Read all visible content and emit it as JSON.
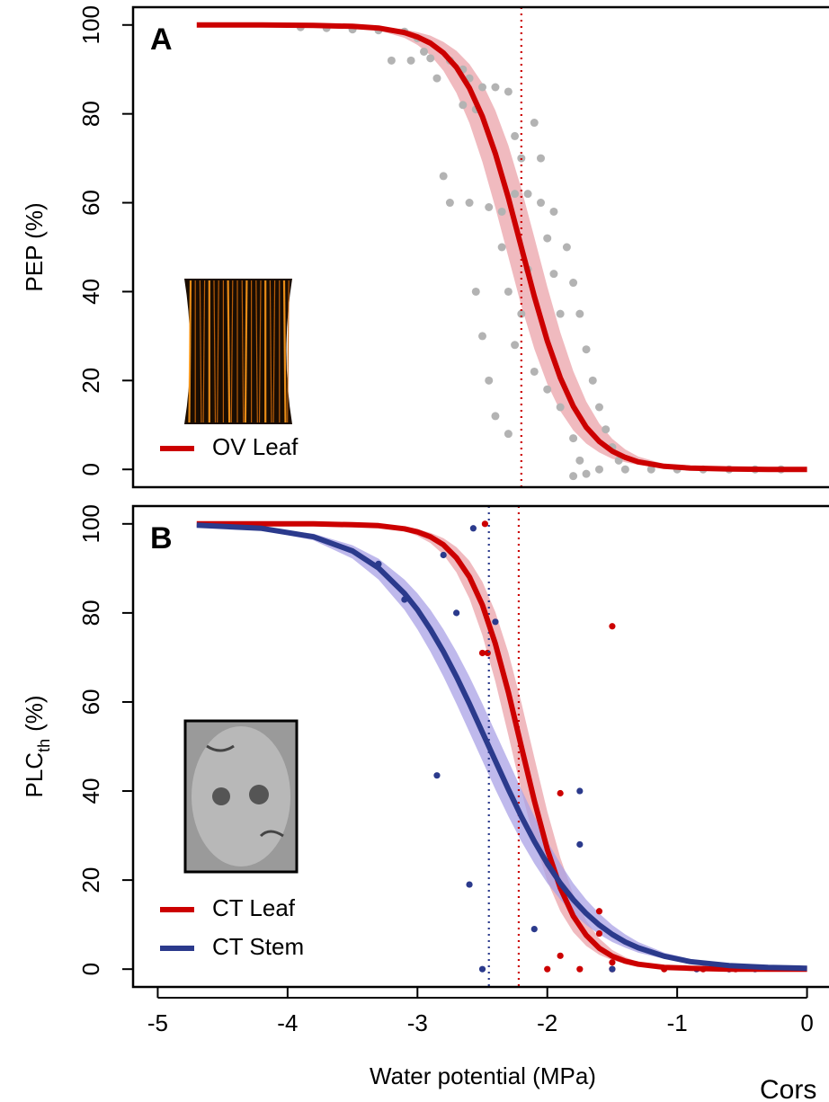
{
  "chart_data": [
    {
      "type": "line",
      "label": "A",
      "ylabel": "PEP (%)",
      "legend": "lower left",
      "xlim": [
        -5.19,
        0.19
      ],
      "ylim": [
        -4,
        104
      ],
      "yticks": [
        0,
        20,
        40,
        60,
        80,
        100
      ],
      "x": [
        -4.7,
        -4.2,
        -3.8,
        -3.5,
        -3.3,
        -3.1,
        -3.0,
        -2.9,
        -2.8,
        -2.7,
        -2.6,
        -2.5,
        -2.4,
        -2.3,
        -2.2,
        -2.1,
        -2.0,
        -1.9,
        -1.8,
        -1.7,
        -1.6,
        -1.5,
        -1.4,
        -1.3,
        -1.1,
        -0.9,
        -0.6,
        -0.3,
        0
      ],
      "series": [
        {
          "name": "OV Leaf",
          "color": "#cc0000",
          "band_color": "#eba3aa",
          "values": [
            100.0,
            100.0,
            99.9,
            99.7,
            99.3,
            98.3,
            97.3,
            95.9,
            93.7,
            90.5,
            85.8,
            79.4,
            71.1,
            61.1,
            50.0,
            38.9,
            28.9,
            20.6,
            14.2,
            9.5,
            6.3,
            4.1,
            2.7,
            1.7,
            0.7,
            0.3,
            0.1,
            0.0,
            0.0
          ],
          "upper": [
            100.0,
            100.0,
            100.0,
            99.8,
            99.6,
            99.0,
            98.4,
            97.6,
            96.2,
            94.2,
            91.2,
            86.9,
            80.8,
            72.9,
            63.2,
            52.2,
            41.1,
            30.8,
            22.1,
            15.3,
            10.3,
            6.9,
            4.5,
            2.9,
            1.2,
            0.5,
            0.1,
            0.0,
            0.0
          ],
          "lower": [
            100.0,
            100.0,
            99.9,
            99.5,
            98.8,
            97.1,
            95.5,
            93.2,
            89.7,
            84.7,
            77.9,
            69.2,
            58.9,
            47.8,
            36.8,
            27.1,
            19.2,
            13.1,
            8.8,
            5.8,
            3.8,
            2.4,
            1.6,
            1.0,
            0.4,
            0.2,
            0.0,
            0.0,
            0.0
          ]
        }
      ],
      "points": [
        {
          "color": "#b3b3b3",
          "x": [
            -3.9,
            -3.7,
            -3.5,
            -3.3,
            -3.1,
            -3.0,
            -2.95,
            -2.9,
            -2.85,
            -3.2,
            -3.05,
            -2.75,
            -2.65,
            -2.6,
            -2.5,
            -2.4,
            -2.3,
            -2.65,
            -2.55,
            -2.8,
            -2.75,
            -2.6,
            -2.45,
            -2.35,
            -2.25,
            -2.15,
            -2.05,
            -1.95,
            -1.85,
            -1.8,
            -1.75,
            -1.7,
            -1.65,
            -1.6,
            -1.55,
            -1.5,
            -1.45,
            -2.55,
            -2.5,
            -2.45,
            -2.4,
            -2.3,
            -2.1,
            -2.05,
            -2.0,
            -1.95,
            -1.9,
            -2.15,
            -2.2,
            -2.25,
            -2.1,
            -2.0,
            -1.9,
            -1.8,
            -1.75,
            -1.7,
            -1.8,
            -1.6,
            -1.4,
            -1.2,
            -1.0,
            -0.8,
            -0.6,
            -0.4,
            -0.2,
            -2.35,
            -2.3,
            -2.25,
            -2.2
          ],
          "values": [
            99.5,
            99.3,
            99.0,
            98.8,
            98.5,
            97,
            94,
            92.5,
            88,
            92,
            92,
            92,
            90,
            88,
            86,
            86,
            85,
            82,
            81,
            66,
            60,
            60,
            59,
            58,
            62,
            62,
            60,
            58,
            50,
            42,
            35,
            27,
            20,
            14,
            9,
            5,
            2,
            40,
            30,
            20,
            12,
            8,
            78,
            70,
            52,
            44,
            35,
            45,
            35,
            28,
            22,
            18,
            14,
            7,
            2,
            -1,
            -1.5,
            0,
            0,
            0,
            0,
            0,
            0,
            0,
            0,
            50,
            40,
            75,
            70
          ]
        }
      ],
      "vlines": [
        {
          "x": -2.2,
          "color": "#cc0000"
        }
      ]
    },
    {
      "type": "line",
      "label": "B",
      "ylabel": "PLC",
      "ylabel_sub": "th",
      "ylabel_unit": "(%)",
      "legend": "lower left",
      "xlabel": "Water potential (MPa)",
      "xlim": [
        -5.19,
        0.19
      ],
      "xticks": [
        -5,
        -4,
        -3,
        -2,
        -1,
        0
      ],
      "ylim": [
        -4,
        104
      ],
      "yticks": [
        0,
        20,
        40,
        60,
        80,
        100
      ],
      "x": [
        -4.7,
        -4.2,
        -3.8,
        -3.5,
        -3.3,
        -3.1,
        -3.0,
        -2.9,
        -2.8,
        -2.7,
        -2.6,
        -2.5,
        -2.4,
        -2.3,
        -2.2,
        -2.1,
        -2.0,
        -1.9,
        -1.8,
        -1.7,
        -1.6,
        -1.5,
        -1.4,
        -1.3,
        -1.1,
        -0.9,
        -0.6,
        -0.3,
        0
      ],
      "series": [
        {
          "name": "CT Leaf",
          "color": "#cc0000",
          "band_color": "#eba3aa",
          "values": [
            100.0,
            100.0,
            100.0,
            99.8,
            99.6,
            98.9,
            98.2,
            97.1,
            95.3,
            92.4,
            88.1,
            81.8,
            73.1,
            62.2,
            50.0,
            37.8,
            26.9,
            18.2,
            11.9,
            7.6,
            4.7,
            2.9,
            1.8,
            1.1,
            0.4,
            0.2,
            0.0,
            0.0,
            0.0
          ],
          "upper": [
            100.0,
            100.0,
            100.0,
            99.9,
            99.7,
            99.3,
            98.8,
            98.0,
            96.8,
            94.8,
            91.7,
            87.0,
            80.2,
            71.1,
            59.9,
            47.5,
            35.4,
            25.0,
            16.8,
            10.9,
            6.9,
            4.3,
            2.7,
            1.6,
            0.6,
            0.2,
            0.0,
            0.0,
            0.0
          ],
          "lower": [
            100.0,
            100.0,
            99.9,
            99.8,
            99.4,
            98.4,
            97.3,
            95.7,
            93.1,
            89.1,
            83.2,
            75.0,
            64.6,
            52.5,
            40.1,
            28.9,
            19.8,
            13.0,
            8.3,
            5.2,
            3.2,
            2.0,
            1.2,
            0.7,
            0.3,
            0.1,
            0.0,
            0.0,
            0.0
          ]
        },
        {
          "name": "CT Stem",
          "color": "#2b3a8c",
          "band_color": "#aaa2e6",
          "values": [
            99.7,
            99.0,
            97.1,
            93.9,
            90.1,
            84.4,
            80.7,
            76.3,
            71.3,
            65.7,
            59.6,
            53.2,
            46.8,
            40.4,
            34.3,
            28.7,
            23.7,
            19.3,
            15.6,
            12.5,
            9.9,
            7.8,
            6.1,
            4.8,
            2.9,
            1.7,
            0.8,
            0.4,
            0.2
          ],
          "upper": [
            99.8,
            99.2,
            97.8,
            95.2,
            92.2,
            87.5,
            84.4,
            80.7,
            76.3,
            71.3,
            65.7,
            59.6,
            53.2,
            46.8,
            40.4,
            34.3,
            28.7,
            23.7,
            19.3,
            15.6,
            12.5,
            9.9,
            7.8,
            6.1,
            3.7,
            2.3,
            1.0,
            0.5,
            0.2
          ],
          "lower": [
            99.6,
            98.6,
            96.3,
            92.2,
            87.5,
            80.7,
            76.3,
            71.3,
            65.7,
            59.6,
            53.2,
            46.8,
            40.4,
            34.3,
            28.7,
            23.7,
            19.3,
            15.6,
            12.5,
            9.9,
            7.8,
            6.1,
            4.8,
            3.7,
            2.3,
            1.4,
            0.6,
            0.3,
            0.1
          ]
        }
      ],
      "points": [
        {
          "color": "#cc0000",
          "x": [
            -2.48,
            -2.5,
            -2.46,
            -1.5,
            -1.9,
            -1.9,
            -1.75,
            -2.0,
            -1.6,
            -1.6,
            -1.5,
            -1.5,
            -1.1,
            -0.8,
            -0.6,
            -0.55
          ],
          "values": [
            100,
            71,
            71,
            77,
            39.5,
            3,
            0,
            0,
            13,
            8,
            1.5,
            0,
            0,
            0,
            0,
            0
          ]
        },
        {
          "color": "#2b3a8c",
          "x": [
            -3.3,
            -3.1,
            -2.8,
            -2.7,
            -2.57,
            -2.4,
            -2.85,
            -2.6,
            -2.5,
            -1.75,
            -1.75,
            -2.1,
            -1.5,
            -0.85,
            -0.6,
            -0.4
          ],
          "values": [
            91,
            83,
            93,
            80,
            99,
            78,
            43.5,
            19,
            0,
            40,
            28,
            9,
            0,
            0,
            0,
            0
          ]
        }
      ],
      "vlines": [
        {
          "x": -2.45,
          "color": "#2b3a8c"
        },
        {
          "x": -2.22,
          "color": "#cc0000"
        }
      ]
    }
  ],
  "caption": "Cors"
}
